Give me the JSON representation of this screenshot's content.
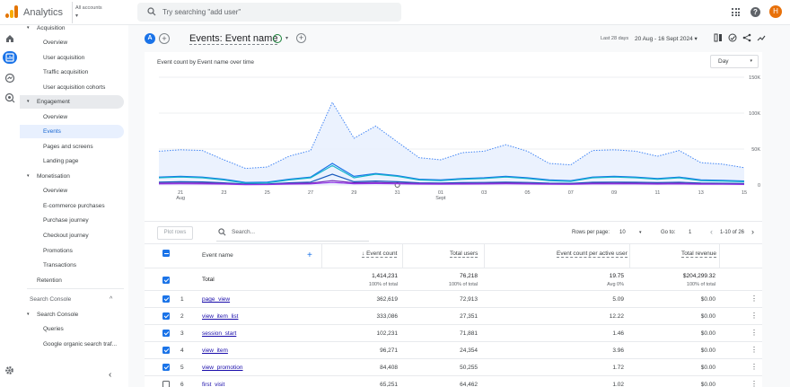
{
  "app": {
    "title": "Analytics",
    "account_label": "All accounts",
    "search_placeholder": "Try searching \"add user\"",
    "avatar_letter": "H"
  },
  "nav": {
    "items": [
      {
        "label": "Acquisition",
        "level": 0,
        "expanded": true
      },
      {
        "label": "Overview",
        "level": 1
      },
      {
        "label": "User acquisition",
        "level": 1
      },
      {
        "label": "Traffic acquisition",
        "level": 1
      },
      {
        "label": "User acquisition cohorts",
        "level": 1
      },
      {
        "label": "Engagement",
        "level": 0,
        "expanded": true,
        "section": true
      },
      {
        "label": "Overview",
        "level": 1
      },
      {
        "label": "Events",
        "level": 1,
        "selected": true
      },
      {
        "label": "Pages and screens",
        "level": 1
      },
      {
        "label": "Landing page",
        "level": 1
      },
      {
        "label": "Monetisation",
        "level": 0,
        "expanded": true
      },
      {
        "label": "Overview",
        "level": 1
      },
      {
        "label": "E-commerce purchases",
        "level": 1
      },
      {
        "label": "Purchase journey",
        "level": 1
      },
      {
        "label": "Checkout journey",
        "level": 1
      },
      {
        "label": "Promotions",
        "level": 1
      },
      {
        "label": "Transactions",
        "level": 1
      },
      {
        "label": "Retention",
        "level": 0
      }
    ],
    "search_console_group": "Search Console",
    "search_console_items": [
      {
        "label": "Search Console",
        "level": 0,
        "expanded": true
      },
      {
        "label": "Queries",
        "level": 1
      },
      {
        "label": "Google organic search traf...",
        "level": 1
      }
    ]
  },
  "header": {
    "segment_letter": "A",
    "title": "Events: Event name",
    "date_label": "Last 28 days",
    "date_range": "20 Aug - 16 Sept 2024"
  },
  "chart": {
    "title": "Event count by Event name over time",
    "granularity": "Day",
    "legend": [
      {
        "name": "Total",
        "color": "#8ab4f8",
        "hollow": true
      },
      {
        "name": "page_view",
        "color": "#1a73e8"
      },
      {
        "name": "view_item_list",
        "color": "#12b5cb"
      },
      {
        "name": "session_start",
        "color": "#185abc"
      },
      {
        "name": "view_item",
        "color": "#7627bb"
      },
      {
        "name": "view_promotion",
        "color": "#9334e6"
      }
    ]
  },
  "chart_data": {
    "type": "line",
    "x": [
      "20 Aug",
      "21 Aug",
      "22 Aug",
      "23 Aug",
      "24 Aug",
      "25 Aug",
      "26 Aug",
      "27 Aug",
      "28 Aug",
      "29 Aug",
      "30 Aug",
      "31 Aug",
      "01 Sept",
      "02 Sept",
      "03 Sept",
      "04 Sept",
      "05 Sept",
      "06 Sept",
      "07 Sept",
      "08 Sept",
      "09 Sept",
      "10 Sept",
      "11 Sept",
      "12 Sept",
      "13 Sept",
      "14 Sept",
      "15 Sept",
      "16 Sept"
    ],
    "x_tick_labels": [
      "21",
      "23",
      "25",
      "27",
      "29",
      "31",
      "01",
      "03",
      "05",
      "07",
      "09",
      "11",
      "13",
      "15"
    ],
    "x_tick_sublabels": {
      "21": "Aug",
      "01": "Sept"
    },
    "ylim": [
      0,
      150000
    ],
    "y_ticks": [
      "0",
      "50K",
      "100K",
      "150K"
    ],
    "grid": true,
    "series": [
      {
        "name": "Total",
        "values": [
          47000,
          49000,
          48000,
          35000,
          23000,
          25000,
          40000,
          48000,
          115000,
          65000,
          82000,
          60000,
          38000,
          35000,
          45000,
          47000,
          56000,
          47000,
          30000,
          28000,
          48000,
          49000,
          47000,
          40000,
          48000,
          31000,
          29000,
          24000
        ]
      },
      {
        "name": "page_view",
        "values": [
          11000,
          12000,
          11000,
          8000,
          3500,
          4000,
          8000,
          11000,
          30000,
          12000,
          16000,
          13000,
          8000,
          7000,
          9000,
          10000,
          12000,
          10000,
          7000,
          6000,
          11000,
          12000,
          11000,
          9000,
          11000,
          7000,
          6500,
          5500
        ]
      },
      {
        "name": "view_item_list",
        "values": [
          10000,
          11000,
          10000,
          7000,
          2500,
          3000,
          7000,
          10000,
          27000,
          10000,
          15000,
          12000,
          7000,
          6000,
          8000,
          9000,
          11000,
          9000,
          6000,
          5000,
          10000,
          11000,
          10000,
          8000,
          10000,
          6000,
          5500,
          4500
        ]
      },
      {
        "name": "session_start",
        "values": [
          4000,
          4500,
          4200,
          3000,
          1200,
          1500,
          3000,
          4000,
          15000,
          4500,
          5500,
          4500,
          3000,
          2800,
          3200,
          3500,
          4000,
          3500,
          2500,
          2200,
          3800,
          4000,
          3800,
          3300,
          3800,
          2600,
          2400,
          2000
        ]
      },
      {
        "name": "view_item",
        "values": [
          2500,
          2700,
          2600,
          2000,
          800,
          900,
          2000,
          2500,
          6000,
          3000,
          3500,
          2800,
          2000,
          1900,
          2100,
          2200,
          2600,
          2200,
          1600,
          1400,
          2400,
          2500,
          2400,
          2100,
          2400,
          1700,
          1500,
          1300
        ]
      },
      {
        "name": "view_promotion",
        "values": [
          1500,
          1600,
          1550,
          1200,
          500,
          600,
          1200,
          1500,
          3500,
          1700,
          2000,
          1600,
          1200,
          1100,
          1300,
          1400,
          1600,
          1400,
          1000,
          900,
          1450,
          1500,
          1450,
          1300,
          1450,
          1050,
          950,
          800
        ]
      }
    ]
  },
  "table": {
    "plot_rows_label": "Plot rows",
    "search_placeholder": "Search...",
    "rows_per_page_label": "Rows per page:",
    "rows_per_page": "10",
    "goto_label": "Go to:",
    "goto_value": "1",
    "pagination": "1-10 of 26",
    "columns": {
      "name": "Event name",
      "event_count": "Event count",
      "total_users": "Total users",
      "per_user": "Event count per active user",
      "revenue": "Total revenue"
    },
    "sort_arrow": "↓",
    "total": {
      "label": "Total",
      "event_count": "1,414,231",
      "event_count_sub": "100% of total",
      "total_users": "76,218",
      "total_users_sub": "100% of total",
      "per_user": "19.75",
      "per_user_sub": "Avg 0%",
      "revenue": "$204,299.32",
      "revenue_sub": "100% of total"
    },
    "rows": [
      {
        "idx": "1",
        "name": "page_view",
        "event_count": "362,619",
        "total_users": "72,913",
        "per_user": "5.09",
        "revenue": "$0.00",
        "checked": true
      },
      {
        "idx": "2",
        "name": "view_item_list",
        "event_count": "333,086",
        "total_users": "27,351",
        "per_user": "12.22",
        "revenue": "$0.00",
        "checked": true
      },
      {
        "idx": "3",
        "name": "session_start",
        "event_count": "102,231",
        "total_users": "71,881",
        "per_user": "1.46",
        "revenue": "$0.00",
        "checked": true
      },
      {
        "idx": "4",
        "name": "view_item",
        "event_count": "96,271",
        "total_users": "24,354",
        "per_user": "3.96",
        "revenue": "$0.00",
        "checked": true
      },
      {
        "idx": "5",
        "name": "view_promotion",
        "event_count": "84,408",
        "total_users": "50,255",
        "per_user": "1.72",
        "revenue": "$0.00",
        "checked": true
      },
      {
        "idx": "6",
        "name": "first_visit",
        "event_count": "65,251",
        "total_users": "64,462",
        "per_user": "1.02",
        "revenue": "$0.00",
        "checked": false
      }
    ]
  },
  "colors": {
    "accent": "#1a73e8",
    "avatar": "#e8710a",
    "selected_bg": "#e8f0fe"
  }
}
